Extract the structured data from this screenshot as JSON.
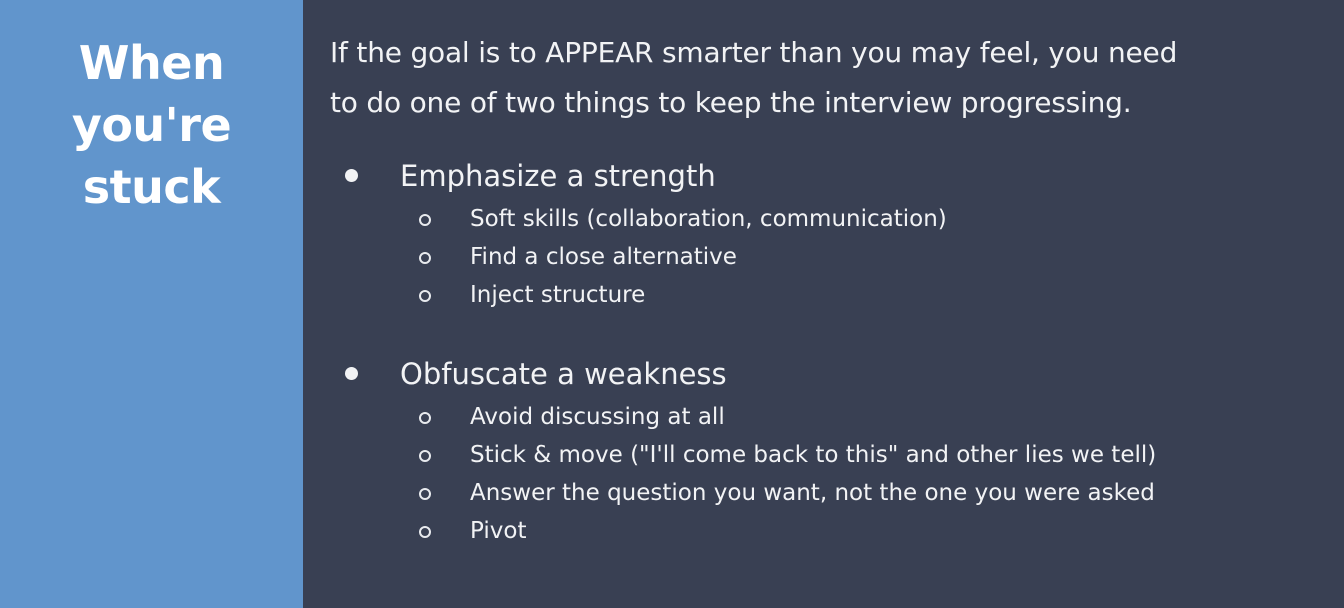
{
  "sidebar": {
    "title_lines": [
      "When",
      "you're",
      "stuck"
    ]
  },
  "main": {
    "intro_line1": "If the goal is to APPEAR smarter than you may feel, you need",
    "intro_line2": "to do one of two things to keep the interview progressing.",
    "bullets": [
      {
        "label": "Emphasize a strength",
        "subs": [
          "Soft skills (collaboration, communication)",
          "Find a close alternative",
          "Inject structure"
        ]
      },
      {
        "label": "Obfuscate a weakness",
        "subs": [
          "Avoid discussing at all",
          "Stick & move (\"I'll come back to this\" and other lies we tell)",
          "Answer the question you want, not the one you were asked",
          "Pivot"
        ]
      }
    ]
  },
  "colors": {
    "sidebar_bg": "#6195cc",
    "content_bg": "#394053",
    "text": "#f2f3f5"
  },
  "icons": {
    "bullet": "filled-circle-bullet-icon",
    "sub_bullet": "hollow-circle-bullet-icon"
  }
}
